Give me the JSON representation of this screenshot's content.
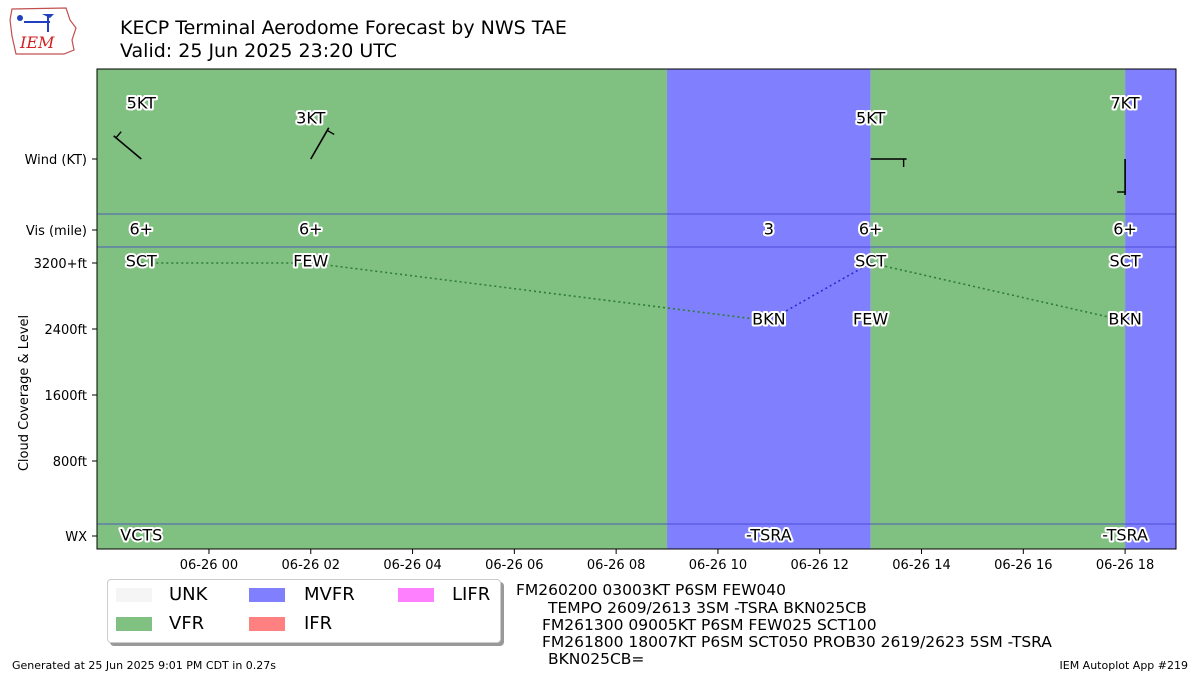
{
  "header": {
    "title": "KECP Terminal Aerodome Forecast by NWS TAE",
    "valid": "Valid: 25 Jun 2025 23:20 UTC",
    "logo_text": "IEM"
  },
  "taf_text": [
    "FM260200 03003KT P6SM FEW040",
    "TEMPO 2609/2613 3SM -TSRA BKN025CB",
    "FM261300 09005KT P6SM FEW025 SCT100",
    "FM261800 18007KT P6SM SCT050 PROB30 2619/2623 5SM -TSRA",
    "BKN025CB="
  ],
  "legend": [
    {
      "label": "UNK",
      "color": "#f5f5f5"
    },
    {
      "label": "VFR",
      "color": "#80c080"
    },
    {
      "label": "MVFR",
      "color": "#8080ff"
    },
    {
      "label": "IFR",
      "color": "#ff8080"
    },
    {
      "label": "LIFR",
      "color": "#ff80ff"
    }
  ],
  "footer": {
    "generated": "Generated at 25 Jun 2025 9:01 PM CDT in 0.27s",
    "app": "IEM Autoplot App #219"
  },
  "chart_data": {
    "type": "timeline",
    "x_ticks": [
      "06-26 00",
      "06-26 02",
      "06-26 04",
      "06-26 06",
      "06-26 08",
      "06-26 10",
      "06-26 12",
      "06-26 14",
      "06-26 16",
      "06-26 18"
    ],
    "x_tick_hours": [
      0,
      2,
      4,
      6,
      8,
      10,
      12,
      14,
      16,
      18
    ],
    "xlim_hours": [
      -2.2,
      19.0
    ],
    "y_rows": [
      "Wind (KT)",
      "Vis (mile)",
      "WX"
    ],
    "cloud_axis": {
      "label": "Cloud Coverage & Level",
      "ticks": [
        "3200+ft",
        "2400ft",
        "1600ft",
        "800ft"
      ],
      "tick_values": [
        3200,
        2400,
        1600,
        800
      ]
    },
    "category_spans": [
      {
        "start": -2.2,
        "end": 9.0,
        "category": "VFR"
      },
      {
        "start": 9.0,
        "end": 13.0,
        "category": "MVFR"
      },
      {
        "start": 13.0,
        "end": 18.0,
        "category": "VFR"
      },
      {
        "start": 18.0,
        "end": 19.0,
        "category": "MVFR"
      }
    ],
    "wind": [
      {
        "hour": -1.33,
        "label": "5KT",
        "dir": 310,
        "speed": 5
      },
      {
        "hour": 2.0,
        "label": "3KT",
        "dir": 30,
        "speed": 3
      },
      {
        "hour": 13.0,
        "label": "5KT",
        "dir": 90,
        "speed": 5
      },
      {
        "hour": 18.0,
        "label": "7KT",
        "dir": 180,
        "speed": 7
      }
    ],
    "visibility": [
      {
        "hour": -1.33,
        "label": "6+"
      },
      {
        "hour": 2.0,
        "label": "6+"
      },
      {
        "hour": 11.0,
        "label": "3"
      },
      {
        "hour": 13.0,
        "label": "6+"
      },
      {
        "hour": 18.0,
        "label": "6+"
      }
    ],
    "clouds": [
      {
        "hour": -1.33,
        "label": "SCT",
        "level": 3200
      },
      {
        "hour": 2.0,
        "label": "FEW",
        "level": 3200
      },
      {
        "hour": 11.0,
        "label": "BKN",
        "level": 2500
      },
      {
        "hour": 13.0,
        "label": "SCT",
        "level": 3200
      },
      {
        "hour": 13.0,
        "label": "FEW",
        "level": 2500
      },
      {
        "hour": 18.0,
        "label": "SCT",
        "level": 3200
      },
      {
        "hour": 18.0,
        "label": "BKN",
        "level": 2500
      }
    ],
    "cloud_lines": [
      {
        "from": [
          -1.33,
          3200
        ],
        "to": [
          2.0,
          3200
        ],
        "color": "#2e7d32"
      },
      {
        "from": [
          2.0,
          3200
        ],
        "to": [
          11.0,
          2500
        ],
        "color": "#2e7d32"
      },
      {
        "from": [
          11.0,
          2500
        ],
        "to": [
          13.0,
          3200
        ],
        "color": "#2a2ad0"
      },
      {
        "from": [
          13.0,
          3200
        ],
        "to": [
          18.0,
          2500
        ],
        "color": "#2e7d32"
      }
    ],
    "weather": [
      {
        "hour": -1.33,
        "label": "VCTS"
      },
      {
        "hour": 11.0,
        "label": "-TSRA"
      },
      {
        "hour": 18.0,
        "label": "-TSRA"
      }
    ]
  }
}
